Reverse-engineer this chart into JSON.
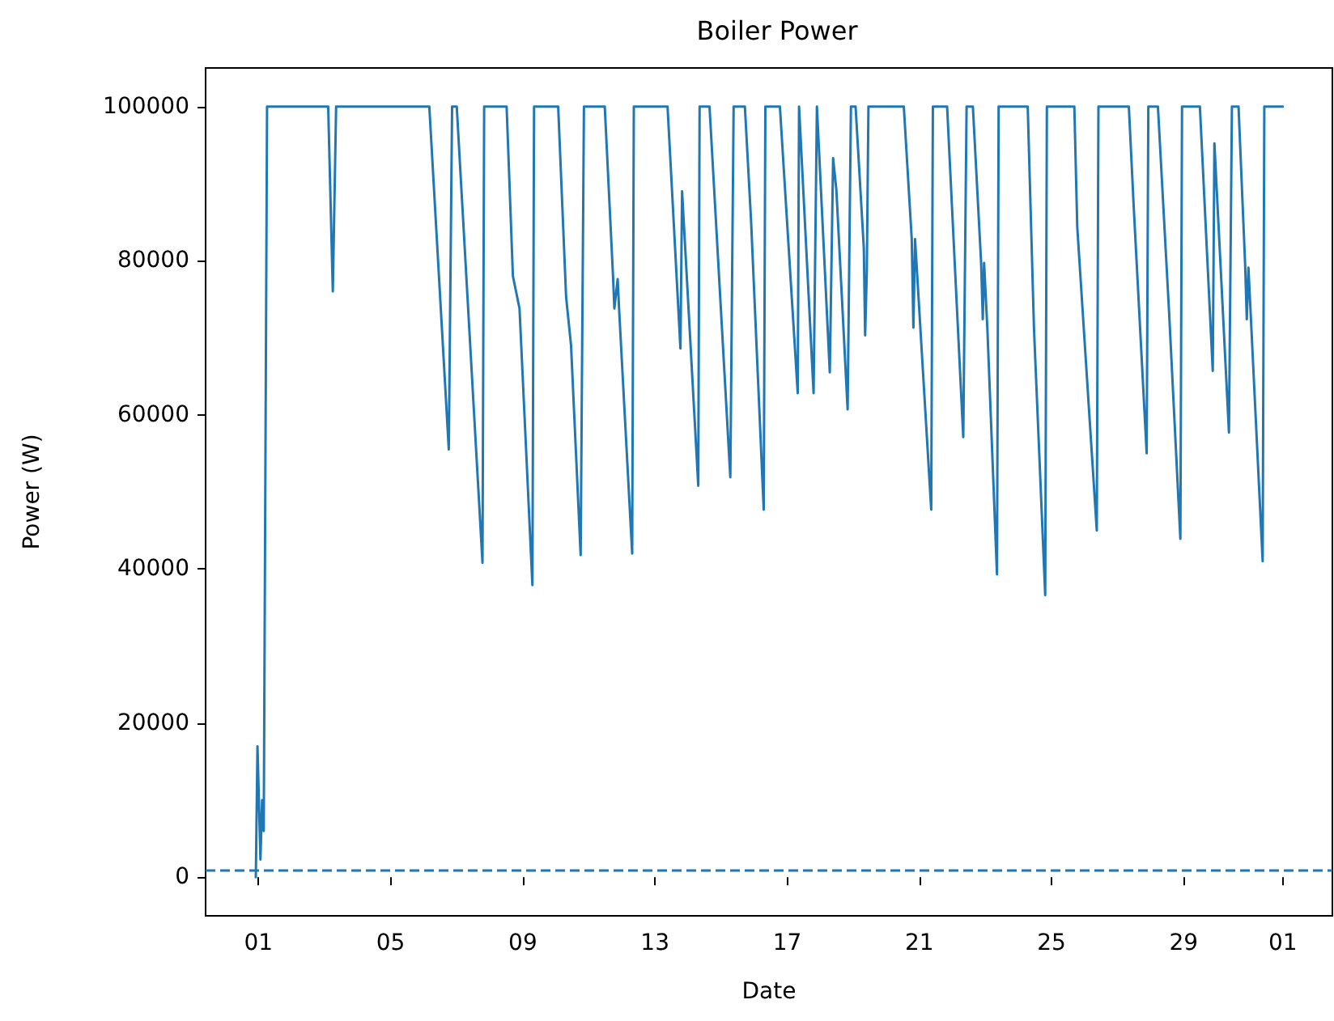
{
  "chart_data": {
    "type": "line",
    "title": "Boiler Power",
    "xlabel": "Date",
    "ylabel": "Power (W)",
    "x": [
      "--07-31T22:05",
      "--07-31T23:17",
      "--08-01T01:26",
      "--08-01T02:38",
      "--08-01T03:50",
      "--08-01T06:14",
      "--08-03T02:38",
      "--08-03T06:00",
      "--08-03T08:24",
      "--08-06T04:05",
      "--08-06T18:14",
      "--08-06T20:38",
      "--08-07T00:00",
      "--08-07T18:43",
      "--08-07T19:55",
      "--08-08T12:14",
      "--08-08T16:48",
      "--08-08T21:36",
      "--08-09T06:58",
      "--08-09T08:10",
      "--08-10T01:41",
      "--08-10T07:26",
      "--08-10T11:02",
      "--08-10T18:00",
      "--08-10T20:24",
      "--08-11T11:31",
      "--08-11T17:31",
      "--08-11T18:29",
      "--08-11T20:53",
      "--08-11T22:05",
      "--08-12T07:26",
      "--08-12T08:38",
      "--08-13T09:07",
      "--08-13T18:29",
      "--08-13T19:41",
      "--08-14T07:26",
      "--08-14T08:24",
      "--08-14T15:36",
      "--08-15T06:43",
      "--08-15T09:07",
      "--08-15T17:17",
      "--08-15T21:50",
      "--08-16T06:58",
      "--08-16T08:10",
      "--08-16T18:43",
      "--08-17T07:41",
      "--08-17T08:38",
      "--08-17T19:12",
      "--08-17T21:36",
      "--08-18T06:58",
      "--08-18T09:22",
      "--08-18T11:46",
      "--08-18T19:55",
      "--08-18T22:19",
      "--08-19T01:41",
      "--08-19T07:41",
      "--08-19T08:38",
      "--08-19T09:50",
      "--08-19T11:02",
      "--08-20T12:43",
      "--08-20T18:29",
      "--08-20T19:41",
      "--08-20T20:53",
      "--08-21T08:38",
      "--08-21T09:50",
      "--08-21T20:10",
      "--08-22T02:10",
      "--08-22T07:55",
      "--08-22T10:19",
      "--08-22T14:53",
      "--08-22T20:53",
      "--08-22T22:05",
      "--08-22T23:02",
      "--08-23T01:26",
      "--08-23T08:24",
      "--08-23T09:36",
      "--08-24T06:43",
      "--08-24T11:17",
      "--08-24T19:26",
      "--08-24T20:38",
      "--08-25T16:34",
      "--08-25T18:43",
      "--08-26T08:53",
      "--08-26T10:05",
      "--08-27T08:10",
      "--08-27T11:46",
      "--08-27T21:07",
      "--08-27T22:19",
      "--08-28T05:17",
      "--08-28T13:26",
      "--08-28T21:36",
      "--08-28T22:48",
      "--08-29T11:46",
      "--08-29T21:07",
      "--08-29T22:19",
      "--08-30T08:53",
      "--08-30T11:02",
      "--08-30T15:50",
      "--08-30T20:38",
      "--08-30T21:50",
      "--08-30T23:02",
      "--08-31T09:22",
      "--08-31T10:34",
      "--09-01T00:00"
    ],
    "series": [
      {
        "color": "#1f77b4",
        "values": [
          0,
          17000,
          2300,
          10000,
          6000,
          100000,
          100000,
          76000,
          100000,
          100000,
          55500,
          100000,
          100000,
          40800,
          100000,
          100000,
          78000,
          73800,
          37900,
          100000,
          100000,
          75300,
          69000,
          41800,
          100000,
          100000,
          78000,
          73800,
          77600,
          73200,
          42000,
          100000,
          100000,
          68600,
          89000,
          50800,
          100000,
          100000,
          51900,
          100000,
          100000,
          85000,
          47700,
          100000,
          100000,
          62800,
          100000,
          62800,
          100000,
          65500,
          93300,
          89100,
          60700,
          100000,
          100000,
          81600,
          70300,
          78500,
          100000,
          100000,
          82800,
          71300,
          82800,
          47700,
          100000,
          100000,
          78000,
          57100,
          100000,
          100000,
          79700,
          72400,
          79700,
          71100,
          39300,
          100000,
          100000,
          71100,
          36600,
          100000,
          100000,
          84300,
          45000,
          100000,
          100000,
          86800,
          55000,
          100000,
          100000,
          73200,
          43900,
          100000,
          100000,
          65700,
          95200,
          57700,
          100000,
          100000,
          79500,
          72400,
          79100,
          41000,
          100000,
          100000
        ]
      }
    ],
    "xlim": [
      "--07-30T09:36",
      "--09-02T12:00"
    ],
    "xticks": [
      {
        "value": "--08-01",
        "label": "01"
      },
      {
        "value": "--08-05",
        "label": "05"
      },
      {
        "value": "--08-09",
        "label": "09"
      },
      {
        "value": "--08-13",
        "label": "13"
      },
      {
        "value": "--08-17",
        "label": "17"
      },
      {
        "value": "--08-21",
        "label": "21"
      },
      {
        "value": "--08-25",
        "label": "25"
      },
      {
        "value": "--08-29",
        "label": "29"
      },
      {
        "value": "--09-01",
        "label": "01"
      }
    ],
    "ylim": [
      -5000,
      105000
    ],
    "yticks": [
      0,
      20000,
      40000,
      60000,
      80000,
      100000
    ],
    "ref_lines": [
      {
        "axis": "y",
        "value": 1000,
        "color": "#1f77b4",
        "line_style": "dashed"
      }
    ],
    "grid": false,
    "marker": "none",
    "line_style": "solid"
  }
}
